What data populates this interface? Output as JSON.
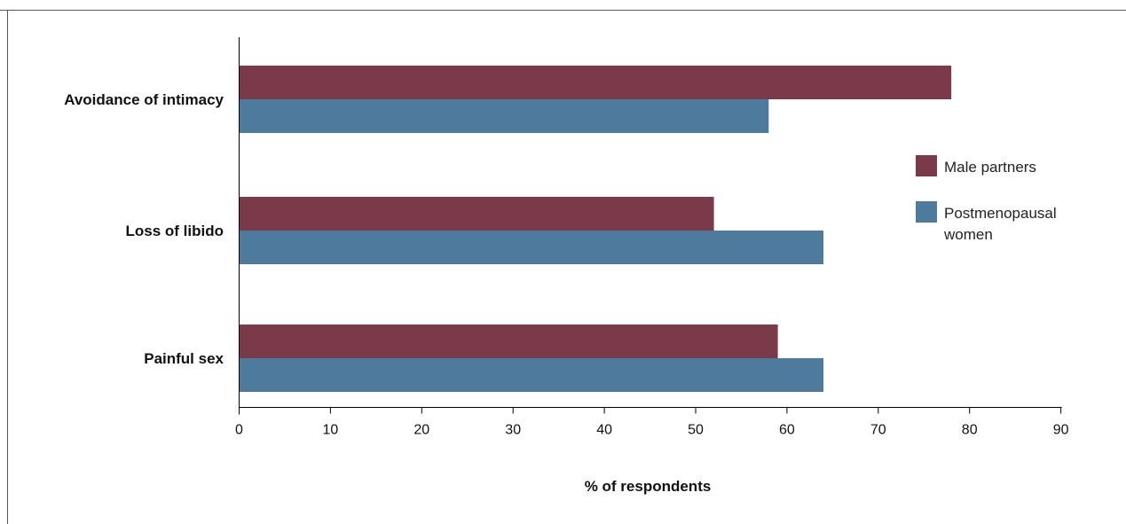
{
  "chart_data": {
    "type": "bar",
    "orientation": "horizontal",
    "title": "",
    "xlabel": "% of respondents",
    "ylabel": "",
    "categories": [
      "Avoidance of intimacy",
      "Loss of libido",
      "Painful sex"
    ],
    "series": [
      {
        "name": "Male partners",
        "color": "#7b3a4a",
        "values": [
          78,
          52,
          59
        ]
      },
      {
        "name": "Postmenopausal women",
        "color": "#4e7a9e",
        "values": [
          58,
          64,
          64
        ]
      }
    ],
    "xlim": [
      0,
      90
    ],
    "xticks": [
      "0",
      "10",
      "20",
      "30",
      "40",
      "50",
      "60",
      "70",
      "80",
      "90"
    ],
    "grid": false,
    "legend_placement": "right",
    "legend_lines": [
      [
        "Male partners"
      ],
      [
        "Postmenopausal",
        "women"
      ]
    ]
  }
}
